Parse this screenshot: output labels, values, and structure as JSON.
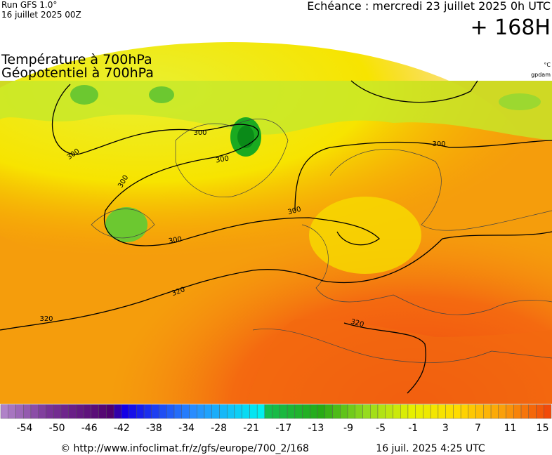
{
  "header": {
    "run": "Run GFS 1.0°",
    "date": "16 juillet 2025 00Z",
    "echeance": "Echéance : mercredi 23 juillet 2025 0h UTC",
    "offset": "+ 168H"
  },
  "titles": {
    "line1": "Température à 700hPa",
    "line2": "Géopotentiel à 700hPa",
    "unit": "°C",
    "geo_unit": "gpdam"
  },
  "contour_labels": [
    "300",
    "300",
    "300",
    "300",
    "300",
    "300",
    "300",
    "320",
    "320",
    "320"
  ],
  "colorbar": {
    "labels": [
      "-54",
      "-50",
      "-46",
      "-42",
      "-38",
      "-34",
      "-28",
      "-21",
      "-17",
      "-13",
      "-9",
      "-5",
      "-1",
      "3",
      "7",
      "11",
      "15"
    ]
  },
  "footer": {
    "url": "© http://www.infoclimat.fr/z/gfs/europe/700_2/168",
    "time": "16 juil. 2025  4:25 UTC"
  }
}
